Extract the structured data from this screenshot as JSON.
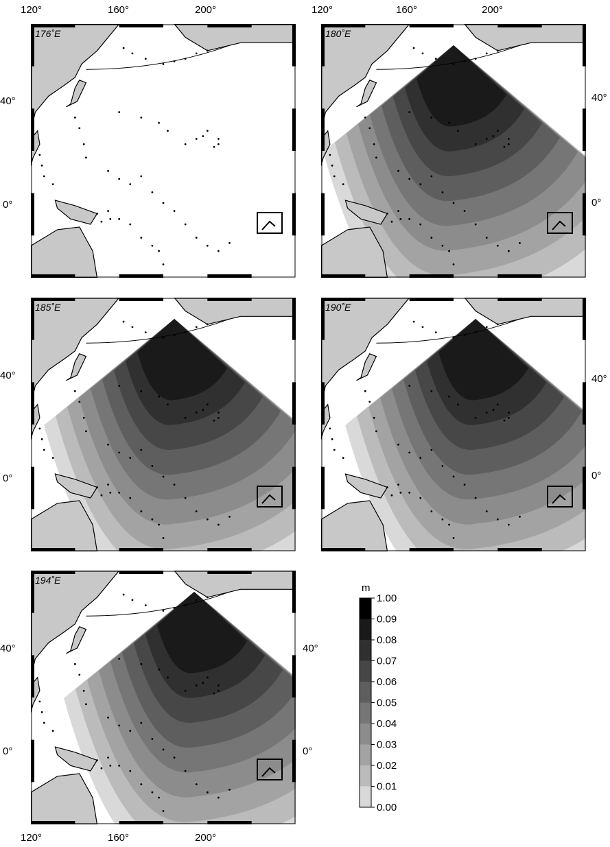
{
  "axes": {
    "x_ticks": [
      "120°",
      "160°",
      "200°"
    ],
    "y_ticks": [
      "40°",
      "0°"
    ]
  },
  "panels": [
    {
      "title": "176˚E",
      "source_lon": 176,
      "max_level": 0
    },
    {
      "title": "180˚E",
      "source_lon": 180,
      "max_level": 10
    },
    {
      "title": "185˚E",
      "source_lon": 185,
      "max_level": 10
    },
    {
      "title": "190˚E",
      "source_lon": 190,
      "max_level": 10
    },
    {
      "title": "194˚E",
      "source_lon": 194,
      "max_level": 10
    }
  ],
  "legend": {
    "unit": "m",
    "levels": [
      "1.00",
      "0.09",
      "0.08",
      "0.07",
      "0.06",
      "0.05",
      "0.04",
      "0.03",
      "0.02",
      "0.01",
      "0.00"
    ],
    "colors": [
      "#000000",
      "#1a1a1a",
      "#303030",
      "#474747",
      "#5e5e5e",
      "#767676",
      "#8c8c8c",
      "#a3a3a3",
      "#bbbbbb",
      "#d9d9d9",
      "#ffffff"
    ]
  },
  "colors": {
    "land": "#c8c8c8",
    "ocean": "#ffffff",
    "coast": "#000000"
  }
}
